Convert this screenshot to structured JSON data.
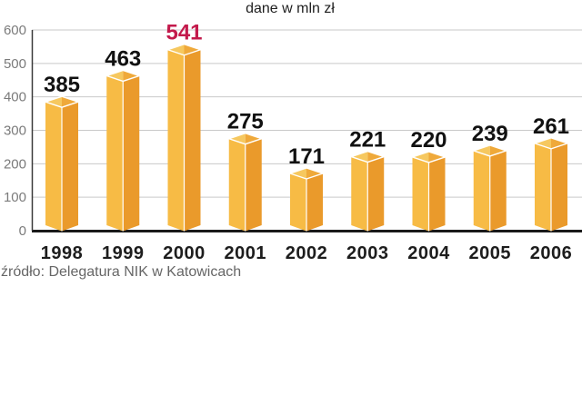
{
  "title": "dane w mln zł",
  "source": "źródło: Delegatura NIK w Katowicach",
  "chart_data": {
    "type": "bar",
    "title": "dane w mln zł",
    "categories": [
      "1998",
      "1999",
      "2000",
      "2001",
      "2002",
      "2003",
      "2004",
      "2005",
      "2006"
    ],
    "values": [
      385,
      463,
      541,
      275,
      171,
      221,
      220,
      239,
      261
    ],
    "highlight_index": 2,
    "xlabel": "",
    "ylabel": "",
    "ylim": [
      0,
      600
    ],
    "yticks": [
      0,
      100,
      200,
      300,
      400,
      500,
      600
    ],
    "grid": true,
    "legend": false,
    "style": "3d-column",
    "source": "źródło: Delegatura NIK w Katowicach",
    "colors": {
      "bar_face_left": "#F7BB45",
      "bar_face_right": "#EA9A2B",
      "bar_top_left": "#F6C85F",
      "bar_top_right": "#EFA93A",
      "bar_edge": "#FFFFFF",
      "value_label": "#111111",
      "value_label_highlight": "#C31A4C",
      "gridline": "#C9C9C9",
      "axis_line": "#1A1A1A",
      "tick_label": "#7B7B7B",
      "category_label": "#1D1D1D",
      "source_text": "#666666"
    }
  }
}
